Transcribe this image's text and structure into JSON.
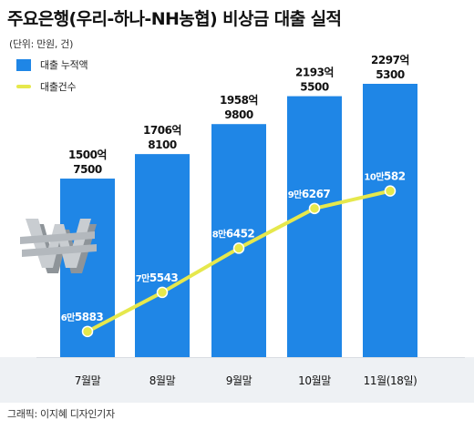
{
  "title": "주요은행(우리-하나-NH농협) 비상금 대출 실적",
  "unit_note": "(단위: 만원, 건)",
  "legend": [
    {
      "label": "대출 누적액",
      "type": "bar",
      "color": "#1f86e6"
    },
    {
      "label": "대출건수",
      "type": "line",
      "color": "#e6e84c"
    }
  ],
  "source": "그래픽: 이지혜 디자인기자",
  "chart_data": {
    "type": "bar",
    "categories": [
      "7월말",
      "8월말",
      "9월말",
      "10월말",
      "11월(18일)"
    ],
    "series": [
      {
        "name": "대출 누적액",
        "type": "bar",
        "values": [
          15007500,
          17068100,
          19589800,
          21935500,
          22975300
        ],
        "label_top": [
          "1500억",
          "1706억",
          "1958억",
          "2193억",
          "2297억"
        ],
        "label_bottom": [
          "7500",
          "8100",
          "9800",
          "5500",
          "5300"
        ]
      },
      {
        "name": "대출건수",
        "type": "line",
        "values": [
          65883,
          75543,
          86452,
          96267,
          100582
        ],
        "label_man": [
          "6만",
          "7만",
          "8만",
          "9만",
          "10만"
        ],
        "label_rest": [
          "5883",
          "5543",
          "6452",
          "6267",
          "582"
        ]
      }
    ],
    "colors": {
      "bar": "#1f86e6",
      "line": "#e6e84c",
      "text": "#111111"
    }
  }
}
